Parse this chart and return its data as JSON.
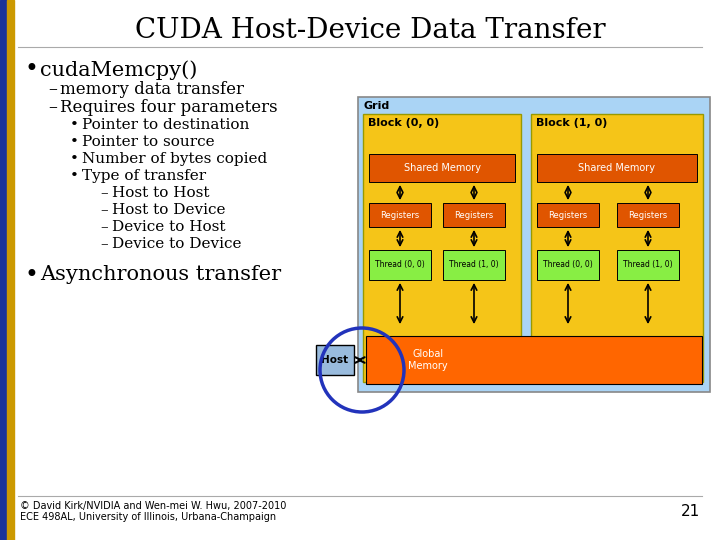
{
  "title": "CUDA Host-Device Data Transfer",
  "slide_bg": "#ffffff",
  "title_fontsize": 20,
  "bullet1": "cudaMemcpy()",
  "sub1": "memory data transfer",
  "sub2": "Requires four parameters",
  "bullets2": [
    "Pointer to destination",
    "Pointer to source",
    "Number of bytes copied",
    "Type of transfer"
  ],
  "sub_bullets": [
    "Host to Host",
    "Host to Device",
    "Device to Host",
    "Device to Device"
  ],
  "bullet3": "Asynchronous transfer",
  "footer1": "© David Kirk/NVIDIA and Wen-mei W. Hwu, 2007-2010",
  "footer2": "ECE 498AL, University of Illinois, Urbana-Champaign",
  "page_num": "21",
  "grid_bg": "#aad4f5",
  "block_bg": "#f5c518",
  "shared_mem_color": "#e05500",
  "register_color": "#e05500",
  "thread_color": "#88ee44",
  "global_mem_color": "#ff6600",
  "host_color": "#99bbdd",
  "grid_label": "Grid",
  "block0_label": "Block (0, 0)",
  "block1_label": "Block (1, 0)",
  "shared_mem_label": "Shared Memory",
  "registers_label": "Registers",
  "thread00_label": "Thread (0, 0)",
  "thread10_label": "Thread (1, 0)",
  "global_mem_label": "Global\nMemory",
  "host_label": "Host",
  "circle_color": "#2233bb",
  "bar_blue": "#1a3399",
  "bar_gold": "#cc9900"
}
